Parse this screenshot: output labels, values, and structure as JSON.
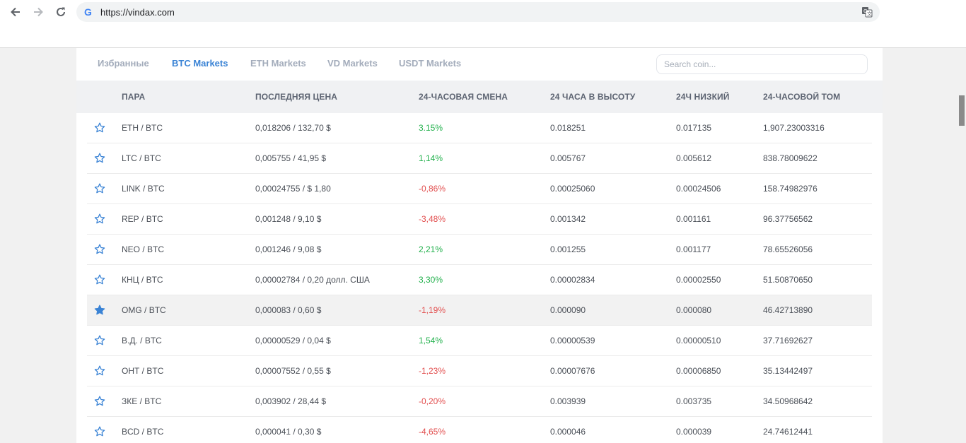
{
  "browser": {
    "url": "https://vindax.com"
  },
  "tabs": [
    {
      "label": "Избранные",
      "active": false
    },
    {
      "label": "BTC Markets",
      "active": true
    },
    {
      "label": "ETH Markets",
      "active": false
    },
    {
      "label": "VD Markets",
      "active": false
    },
    {
      "label": "USDT Markets",
      "active": false
    }
  ],
  "search": {
    "placeholder": "Search coin..."
  },
  "columns": {
    "pair": "ПАРА",
    "last_price": "ПОСЛЕДНЯЯ ЦЕНА",
    "change": "24-ЧАСОВАЯ СМЕНА",
    "high": "24 ЧАСА В ВЫСОТУ",
    "low": "24Ч НИЗКИЙ",
    "volume": "24-ЧАСОВОЙ ТОМ"
  },
  "rows": [
    {
      "base": "ETH",
      "quote": "BTC",
      "price": "0,018206 / 132,70 $",
      "change": "3.15%",
      "change_dir": "up",
      "high": "0.018251",
      "low": "0.017135",
      "volume": "1,907.23003316",
      "favorite": false,
      "highlight": false
    },
    {
      "base": "LTC",
      "quote": "BTC",
      "price": "0,005755 / 41,95 $",
      "change": "1,14%",
      "change_dir": "up",
      "high": "0.005767",
      "low": "0.005612",
      "volume": "838.78009622",
      "favorite": false,
      "highlight": false
    },
    {
      "base": "LINK",
      "quote": "BTC",
      "price": "0,00024755 / $ 1,80",
      "change": "-0,86%",
      "change_dir": "down",
      "high": "0.00025060",
      "low": "0.00024506",
      "volume": "158.74982976",
      "favorite": false,
      "highlight": false
    },
    {
      "base": "REP",
      "quote": "BTC",
      "price": "0,001248 / 9,10 $",
      "change": "-3,48%",
      "change_dir": "down",
      "high": "0.001342",
      "low": "0.001161",
      "volume": "96.37756562",
      "favorite": false,
      "highlight": false
    },
    {
      "base": "NEO",
      "quote": "BTC",
      "price": "0,001246 / 9,08 $",
      "change": "2,21%",
      "change_dir": "up",
      "high": "0.001255",
      "low": "0.001177",
      "volume": "78.65526056",
      "favorite": false,
      "highlight": false
    },
    {
      "base": "КНЦ",
      "quote": "BTC",
      "price": "0,00002784 / 0,20 долл. США",
      "change": "3,30%",
      "change_dir": "up",
      "high": "0.00002834",
      "low": "0.00002550",
      "volume": "51.50870650",
      "favorite": false,
      "highlight": false
    },
    {
      "base": "OMG",
      "quote": "BTC",
      "price": "0,000083 / 0,60 $",
      "change": "-1,19%",
      "change_dir": "down",
      "high": "0.000090",
      "low": "0.000080",
      "volume": "46.42713890",
      "favorite": true,
      "highlight": true
    },
    {
      "base": "В.Д.",
      "quote": "BTC",
      "price": "0,00000529 / 0,04 $",
      "change": "1,54%",
      "change_dir": "up",
      "high": "0.00000539",
      "low": "0.00000510",
      "volume": "37.71692627",
      "favorite": false,
      "highlight": false
    },
    {
      "base": "ОНТ",
      "quote": "BTC",
      "price": "0,00007552 / 0,55 $",
      "change": "-1,23%",
      "change_dir": "down",
      "high": "0.00007676",
      "low": "0.00006850",
      "volume": "35.13442497",
      "favorite": false,
      "highlight": false
    },
    {
      "base": "ЗКЕ",
      "quote": "BTC",
      "price": "0,003902 / 28,44 $",
      "change": "-0,20%",
      "change_dir": "down",
      "high": "0.003939",
      "low": "0.003735",
      "volume": "34.50968642",
      "favorite": false,
      "highlight": false
    },
    {
      "base": "BCD",
      "quote": "BTC",
      "price": "0,000041 / 0,30 $",
      "change": "-4,65%",
      "change_dir": "down",
      "high": "0.000046",
      "low": "0.000039",
      "volume": "24.74612441",
      "favorite": false,
      "highlight": false
    }
  ],
  "colors": {
    "accent": "#3a83d5",
    "positive": "#23b14d",
    "negative": "#e24e4e",
    "tab_inactive": "#a3acbb"
  }
}
